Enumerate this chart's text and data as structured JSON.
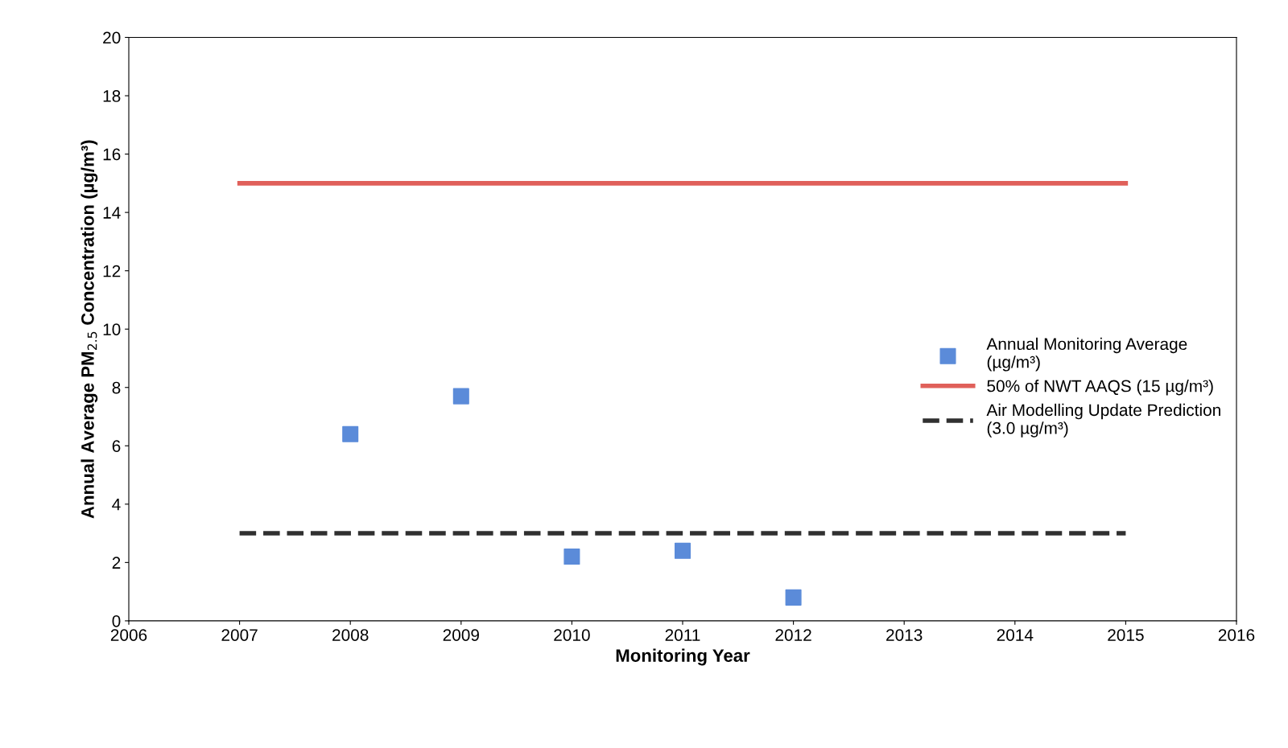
{
  "chart_data": {
    "type": "scatter",
    "xlabel": "Monitoring Year",
    "ylabel": "Annual Average PM$_{2.5}$ Concentration (µg/m³)",
    "xlim": [
      2006,
      2016
    ],
    "xticks": [
      2006,
      2007,
      2008,
      2009,
      2010,
      2011,
      2012,
      2013,
      2014,
      2015,
      2016
    ],
    "ylim": [
      0,
      20
    ],
    "yticks": [
      0,
      2,
      4,
      6,
      8,
      10,
      12,
      14,
      16,
      18,
      20
    ],
    "grid": false,
    "legend": "right",
    "series": [
      {
        "name": "Annual Monitoring Average\n(µg/m³)",
        "marker": "square",
        "color": "#5b8bd9",
        "x": [
          2008,
          2009,
          2010,
          2011,
          2012
        ],
        "values": [
          6.4,
          7.7,
          2.2,
          2.4,
          0.8
        ]
      },
      {
        "name": "50% of NWT AAQS (15 µg/m³)",
        "type": "line",
        "line_style": "solid",
        "color": "#e0605a",
        "x": [
          2007,
          2015
        ],
        "values": [
          15,
          15
        ]
      },
      {
        "name": "Air Modelling Update Prediction\n(3.0 µg/m³)",
        "type": "line",
        "line_style": "dashed",
        "color": "#303030",
        "x": [
          2007,
          2015
        ],
        "values": [
          3.0,
          3.0
        ]
      }
    ]
  }
}
